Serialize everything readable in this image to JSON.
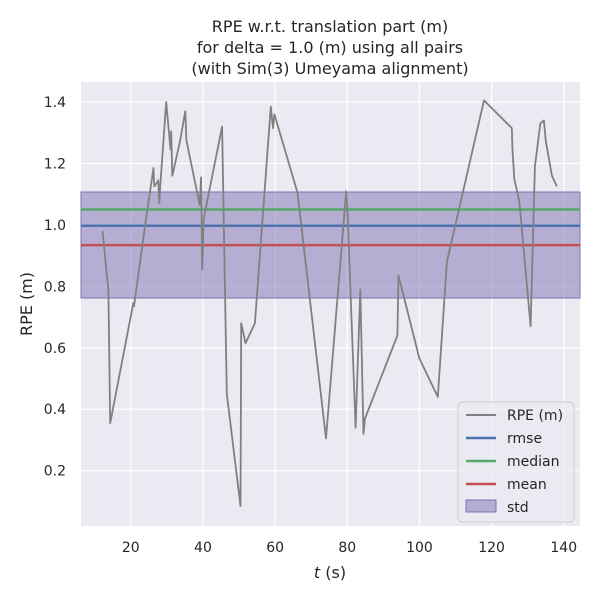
{
  "chart_data": {
    "type": "line",
    "title": [
      "RPE w.r.t. translation part (m)",
      "for delta = 1.0 (m) using all pairs",
      "(with Sim(3) Umeyama alignment)"
    ],
    "xlabel_italic": "t",
    "xlabel_rest": " (s)",
    "ylabel": "RPE (m)",
    "xlim": [
      6.2,
      144.5
    ],
    "ylim": [
      0.02,
      1.465
    ],
    "xticks": [
      20,
      40,
      60,
      80,
      100,
      120,
      140
    ],
    "yticks": [
      0.2,
      0.4,
      0.6,
      0.8,
      1.0,
      1.2,
      1.4
    ],
    "grid": true,
    "legend_position": "lower-right",
    "series": [
      {
        "name": "RPE (m)",
        "color": "#808080",
        "x": [
          12.2,
          13.8,
          14.3,
          20.7,
          20.9,
          23.8,
          26.3,
          26.5,
          27.4,
          27.6,
          27.9,
          28.1,
          29.8,
          31.0,
          31.2,
          31.5,
          33.6,
          35.1,
          35.4,
          39.1,
          39.5,
          39.8,
          40.2,
          45.3,
          46.6,
          50.4,
          50.6,
          51.8,
          54.4,
          58.8,
          59.4,
          59.8,
          66.2,
          74.1,
          79.7,
          80.1,
          82.3,
          83.6,
          84.5,
          84.9,
          93.9,
          94.2,
          100.0,
          105.1,
          107.6,
          117.9,
          125.6,
          125.8,
          126.3,
          127.7,
          130.8,
          132.0,
          133.5,
          134.5,
          135.0,
          136.7,
          138.1
        ],
        "y": [
          0.98,
          0.785,
          0.355,
          0.745,
          0.735,
          0.985,
          1.185,
          1.125,
          1.14,
          1.145,
          1.07,
          1.115,
          1.4,
          1.245,
          1.305,
          1.16,
          1.27,
          1.37,
          1.275,
          1.065,
          1.155,
          0.855,
          1.02,
          1.32,
          0.45,
          0.085,
          0.68,
          0.615,
          0.68,
          1.385,
          1.315,
          1.36,
          1.105,
          0.305,
          1.11,
          1.035,
          0.34,
          0.79,
          0.32,
          0.37,
          0.64,
          0.835,
          0.565,
          0.44,
          0.88,
          1.405,
          1.315,
          1.245,
          1.15,
          1.075,
          0.67,
          1.19,
          1.33,
          1.34,
          1.275,
          1.16,
          1.125
        ]
      },
      {
        "name": "rmse",
        "color": "#4c72b0",
        "y": 0.997
      },
      {
        "name": "median",
        "color": "#55a868",
        "y": 1.05
      },
      {
        "name": "mean",
        "color": "#c44e52",
        "y": 0.934
      },
      {
        "name": "std",
        "color": "#8172b2",
        "y_range": [
          0.762,
          1.107
        ]
      }
    ]
  }
}
